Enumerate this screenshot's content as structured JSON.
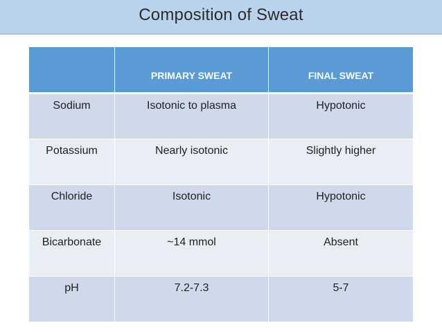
{
  "slide": {
    "title": "Composition of Sweat"
  },
  "table": {
    "headers": [
      "",
      "PRIMARY SWEAT",
      "FINAL SWEAT"
    ],
    "rows": [
      [
        "Sodium",
        "Isotonic to plasma",
        "Hypotonic"
      ],
      [
        "Potassium",
        "Nearly isotonic",
        "Slightly higher"
      ],
      [
        "Chloride",
        "Isotonic",
        "Hypotonic"
      ],
      [
        "Bicarbonate",
        "~14 mmol",
        "Absent"
      ],
      [
        "pH",
        "7.2-7.3",
        "5-7"
      ]
    ]
  },
  "colors": {
    "title_bar": "#b9d3ec",
    "header": "#5b9bd5",
    "row_dark": "#cfd9ea",
    "row_light": "#e9eef6"
  }
}
